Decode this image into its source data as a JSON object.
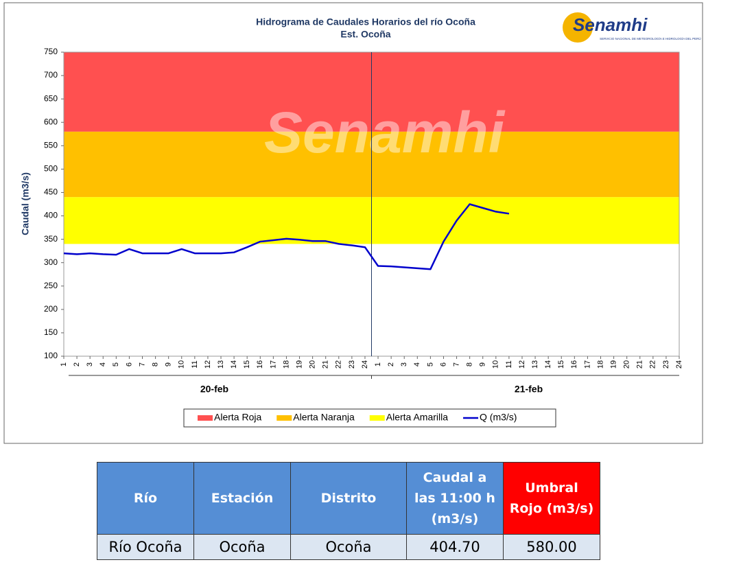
{
  "chart_data": {
    "type": "line",
    "title": "Hidrograma de Caudales Horarios del río Ocoña",
    "subtitle": "Est. Ocoña",
    "y_label": "Caudal  (m3/s)",
    "logo": "Senamhi",
    "logo_caption": "SERVICIO NACIONAL DE METEOROLOGÍA E HIDROLOGÍA DEL PERÚ",
    "watermark": "Senamhi",
    "ylim": [
      100,
      750
    ],
    "yticks": [
      100,
      150,
      200,
      250,
      300,
      350,
      400,
      450,
      500,
      550,
      600,
      650,
      700,
      750
    ],
    "categories": [
      "1",
      "2",
      "3",
      "4",
      "5",
      "6",
      "7",
      "8",
      "9",
      "10",
      "11",
      "12",
      "13",
      "14",
      "15",
      "16",
      "17",
      "18",
      "19",
      "20",
      "21",
      "22",
      "23",
      "24",
      "1",
      "2",
      "3",
      "4",
      "5",
      "6",
      "7",
      "8",
      "9",
      "10",
      "11",
      "12",
      "13",
      "14",
      "15",
      "16",
      "17",
      "18",
      "19",
      "20",
      "21",
      "22",
      "23",
      "24"
    ],
    "x_groups": [
      "20-feb",
      "21-feb"
    ],
    "bands": [
      {
        "name": "Alerta Roja",
        "color": "#ff5050",
        "from": 580,
        "to": 750
      },
      {
        "name": "Alerta Naranja",
        "color": "#ffc000",
        "from": 440,
        "to": 580
      },
      {
        "name": "Alerta Amarilla",
        "color": "#ffff00",
        "from": 340,
        "to": 440
      }
    ],
    "series": [
      {
        "name": "Q (m3/s)",
        "color": "#0000cc",
        "values": [
          320,
          318,
          320,
          318,
          317,
          329,
          320,
          320,
          320,
          329,
          320,
          320,
          320,
          322,
          333,
          345,
          348,
          351,
          349,
          346,
          346,
          340,
          337,
          333,
          293,
          292,
          290,
          288,
          286,
          345,
          390,
          425,
          417,
          409,
          404.7,
          null,
          null,
          null,
          null,
          null,
          null,
          null,
          null,
          null,
          null,
          null,
          null,
          null
        ]
      }
    ]
  },
  "table": {
    "header": [
      "Río",
      "Estación",
      "Distrito",
      "Caudal a las 11:00 h (m3/s)",
      "Umbral Rojo (m3/s)"
    ],
    "rows": [
      [
        "Río Ocoña",
        "Ocoña",
        "Ocoña",
        "404.70",
        "580.00"
      ]
    ]
  }
}
